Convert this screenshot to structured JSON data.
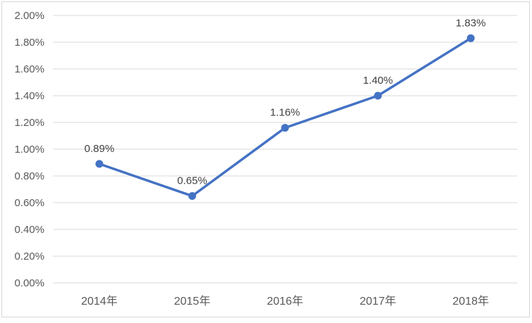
{
  "chart_data": {
    "type": "line",
    "title": "",
    "categories": [
      "2014年",
      "2015年",
      "2016年",
      "2017年",
      "2018年"
    ],
    "series": [
      {
        "name": "",
        "values": [
          0.89,
          0.65,
          1.16,
          1.4,
          1.83
        ],
        "labels": [
          "0.89%",
          "0.65%",
          "1.16%",
          "1.40%",
          "1.83%"
        ]
      }
    ],
    "xlabel": "",
    "ylabel": "",
    "ylim": [
      0,
      2
    ],
    "ytick_step": 0.2,
    "ytick_labels": [
      "0.00%",
      "0.20%",
      "0.40%",
      "0.60%",
      "0.80%",
      "1.00%",
      "1.20%",
      "1.40%",
      "1.60%",
      "1.80%",
      "2.00%"
    ],
    "grid": true,
    "legend_position": "none",
    "colors": {
      "line": "#4472C4",
      "marker": "#4472C4",
      "gridline": "#D9D9D9",
      "chart_border": "#D6D6D6",
      "axis_label": "#595959",
      "data_label": "#3F3F3F",
      "background": "#FFFFFF"
    }
  }
}
